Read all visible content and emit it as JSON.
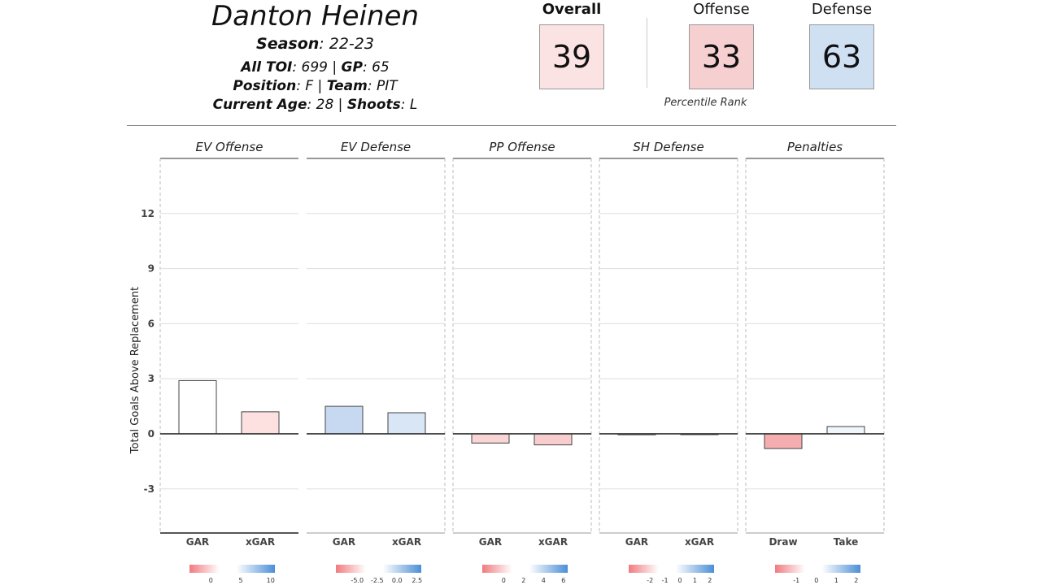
{
  "player": {
    "name": "Danton Heinen",
    "season_label": "Season",
    "season": "22-23",
    "toi_label": "All TOI",
    "toi": "699",
    "gp_label": "GP",
    "gp": "65",
    "position_label": "Position",
    "position": "F",
    "team_label": "Team",
    "team": "PIT",
    "age_label": "Current Age",
    "age": "28",
    "shoots_label": "Shoots",
    "shoots": "L"
  },
  "ranks": {
    "overall_label": "Overall",
    "overall": "39",
    "offense_label": "Offense",
    "offense": "33",
    "defense_label": "Defense",
    "defense": "63",
    "caption": "Percentile Rank",
    "colors": {
      "overall": "#fbe3e3",
      "offense": "#f6cfd0",
      "defense": "#cfe0f3"
    }
  },
  "chart_data": {
    "type": "bar",
    "ylabel": "Total Goals Above Replacement",
    "yticks": [
      -3,
      0,
      3,
      6,
      9,
      12
    ],
    "ylim": [
      -5.4,
      15
    ],
    "grid": true,
    "panels": [
      {
        "title": "EV Offense",
        "categories": [
          "GAR",
          "xGAR"
        ],
        "values": [
          2.9,
          1.2
        ],
        "colors": [
          "#ffffff",
          "#fde0e0"
        ],
        "legend_ticks": [
          "0",
          "5",
          "10"
        ]
      },
      {
        "title": "EV Defense",
        "categories": [
          "GAR",
          "xGAR"
        ],
        "values": [
          1.5,
          1.15
        ],
        "colors": [
          "#c6d9f0",
          "#d8e6f6"
        ],
        "legend_ticks": [
          "-5.0",
          "-2.5",
          "0.0",
          "2.5"
        ]
      },
      {
        "title": "PP Offense",
        "categories": [
          "GAR",
          "xGAR"
        ],
        "values": [
          -0.5,
          -0.6
        ],
        "colors": [
          "#fad5d5",
          "#f8cdce"
        ],
        "legend_ticks": [
          "0",
          "2",
          "4",
          "6"
        ]
      },
      {
        "title": "SH Defense",
        "categories": [
          "GAR",
          "xGAR"
        ],
        "values": [
          -0.05,
          0
        ],
        "colors": [
          "#f6d0d0",
          "#ffffff"
        ],
        "legend_ticks": [
          "-2",
          "-1",
          "0",
          "1",
          "2"
        ]
      },
      {
        "title": "Penalties",
        "categories": [
          "Draw",
          "Take"
        ],
        "values": [
          -0.8,
          0.4
        ],
        "colors": [
          "#f5aeb0",
          "#f0f6fc"
        ],
        "legend_ticks": [
          "-1",
          "0",
          "1",
          "2"
        ]
      }
    ]
  }
}
